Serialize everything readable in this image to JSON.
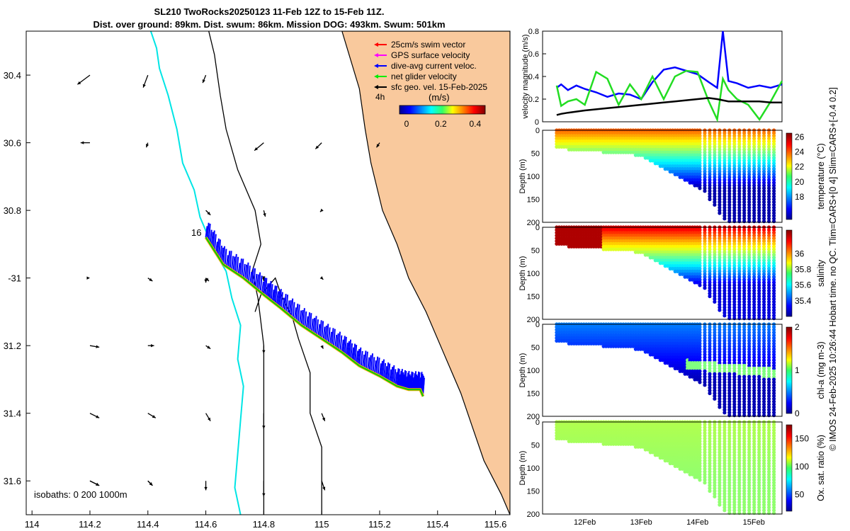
{
  "title": {
    "line1": "SL210 TwoRocks20250123 11-Feb 12Z to 15-Feb 11Z.",
    "line2": "Dist. over ground: 89km. Dist. swum: 86km. Mission DOG: 493km. Swum: 501km"
  },
  "credit": "© IMOS 24-Feb-2025 10:26:44 Hobart time. no QC. Tlim=CARS+[0 4] Slim=CARS+[-0.4 0.2]",
  "colors": {
    "land": "#f9c99d",
    "coast_contour": "#00e5e5",
    "glider_track": "#00cc00",
    "dive_avg": "#0000ff",
    "net_velocity": "#22dd22",
    "sfc_geo": "#000000"
  },
  "chart_data": [
    {
      "type": "map",
      "name": "glider track map",
      "xlabel": "",
      "ylabel": "",
      "xlim": [
        113.98,
        115.65
      ],
      "ylim": [
        -31.7,
        -30.27
      ],
      "x_ticks": [
        114,
        114.2,
        114.4,
        114.6,
        114.8,
        115,
        115.2,
        115.4,
        115.6
      ],
      "y_ticks": [
        -30.4,
        -30.6,
        -30.8,
        -31,
        -31.2,
        -31.4,
        -31.6
      ],
      "x_tick_labels": [
        "114",
        "114.2",
        "114.4",
        "114.6",
        "114.8",
        "115",
        "115.2",
        "115.4",
        "115.6"
      ],
      "y_tick_labels": [
        "30.4",
        "30.6",
        "30.8",
        "-31",
        "31.2",
        "31.4",
        "31.6"
      ],
      "legend": {
        "position": "top-right",
        "entries": [
          {
            "label": "25cm/s swim vector",
            "color": "#ff0000"
          },
          {
            "label": "GPS surface velocity",
            "color": "#ff00ff"
          },
          {
            "label": "dive-avg current veloc.",
            "color": "#0000ff"
          },
          {
            "label": "net glider velocity",
            "color": "#00ee00"
          },
          {
            "label": "sfc geo. vel. 15-Feb-2025",
            "color": "#000000"
          }
        ],
        "time_label": "4h"
      },
      "colorbar": {
        "label": "(m/s)",
        "range": [
          0,
          0.5
        ],
        "ticks": [
          "0",
          "0.2",
          "0.4"
        ]
      },
      "isobath_label": "isobaths: 0   200  1000m",
      "day_label": "16",
      "track": {
        "lon": [
          114.6,
          114.66,
          114.73,
          114.8,
          114.86,
          114.93,
          115.0,
          115.07,
          115.13,
          115.2,
          115.26,
          115.3,
          115.34,
          115.35
        ],
        "lat": [
          -30.88,
          -30.96,
          -31.0,
          -31.05,
          -31.09,
          -31.14,
          -31.18,
          -31.22,
          -31.26,
          -31.29,
          -31.32,
          -31.33,
          -31.33,
          -31.35
        ]
      },
      "coastline_200m": {
        "lon": [
          114.41,
          114.43,
          114.44,
          114.47,
          114.5,
          114.52,
          114.56,
          114.58,
          114.63,
          114.67,
          114.69,
          114.72,
          114.71,
          114.73,
          114.72,
          114.71,
          114.7,
          114.72
        ],
        "lat": [
          -30.27,
          -30.32,
          -30.38,
          -30.46,
          -30.56,
          -30.66,
          -30.74,
          -30.82,
          -30.92,
          -30.98,
          -31.06,
          -31.14,
          -31.24,
          -31.32,
          -31.42,
          -31.52,
          -31.62,
          -31.7
        ]
      },
      "isobath_1000m": {
        "lon": [
          114.61,
          114.63,
          114.64,
          114.65,
          114.67,
          114.71,
          114.77,
          114.79,
          114.76,
          114.78,
          114.8,
          114.8,
          114.8,
          114.8
        ],
        "lat": [
          -30.27,
          -30.34,
          -30.4,
          -30.46,
          -30.56,
          -30.68,
          -30.8,
          -30.9,
          -30.98,
          -31.06,
          -31.2,
          -31.35,
          -31.5,
          -31.7
        ]
      },
      "isobath_0m": {
        "lon": [
          114.77,
          114.79,
          114.84,
          114.86,
          114.9,
          114.92,
          114.96,
          114.96,
          115.0,
          115.0
        ],
        "lat": [
          -31.1,
          -31.05,
          -31.0,
          -31.05,
          -31.12,
          -31.18,
          -31.28,
          -31.4,
          -31.5,
          -31.7
        ]
      },
      "land": {
        "lon": [
          115.07,
          115.13,
          115.15,
          115.17,
          115.21,
          115.26,
          115.3,
          115.36,
          115.42,
          115.48,
          115.52,
          115.56,
          115.62,
          115.65,
          115.65
        ],
        "lat": [
          -30.27,
          -30.44,
          -30.56,
          -30.66,
          -30.8,
          -30.9,
          -31.0,
          -31.1,
          -31.22,
          -31.34,
          -31.44,
          -31.54,
          -31.64,
          -31.7,
          -30.27
        ]
      },
      "geo_vectors": {
        "lon": [
          114.2,
          114.4,
          114.6,
          114.8,
          115.0,
          115.2,
          114.2,
          114.4,
          114.6,
          114.8,
          115.0,
          114.2,
          114.4,
          114.6,
          114.8,
          114.2,
          114.4,
          114.6,
          114.8,
          115.0,
          114.2,
          114.4,
          114.6,
          114.8,
          115.0,
          114.2,
          114.4,
          114.6,
          114.8,
          115.0,
          114.2,
          114.4,
          114.6,
          114.8,
          115.0
        ],
        "lat": [
          -30.4,
          -30.4,
          -30.4,
          -30.6,
          -30.6,
          -30.6,
          -30.6,
          -30.6,
          -30.8,
          -30.8,
          -30.8,
          -31.0,
          -31.0,
          -31.0,
          -31.0,
          -31.2,
          -31.2,
          -31.2,
          -31.2,
          -31.2,
          -31.4,
          -31.4,
          -31.4,
          -31.4,
          -31.4,
          -31.6,
          -31.6,
          -31.6,
          -31.6,
          -31.6,
          -31.6,
          -31.6,
          -31.0,
          -31.0,
          -31.0
        ],
        "u": [
          -0.08,
          -0.03,
          -0.02,
          -0.06,
          -0.04,
          -0.02,
          -0.06,
          -0.01,
          0.03,
          0.01,
          -0.01,
          0.0,
          0.03,
          0.0,
          0.0,
          0.06,
          0.04,
          0.03,
          0.0,
          0.01,
          0.06,
          0.05,
          0.03,
          0.0,
          0.02,
          0.06,
          0.03,
          0.0,
          0.0,
          0.02,
          0.06,
          0.03,
          0.02,
          0.0,
          0.01
        ],
        "v": [
          -0.06,
          -0.08,
          -0.05,
          -0.05,
          -0.04,
          -0.03,
          0.0,
          -0.03,
          -0.03,
          -0.04,
          -0.01,
          0.0,
          -0.02,
          -0.03,
          -0.01,
          -0.01,
          0.0,
          -0.02,
          -0.05,
          -0.02,
          -0.03,
          -0.03,
          -0.05,
          -0.1,
          -0.05,
          -0.03,
          -0.03,
          -0.06,
          -0.1,
          -0.06,
          -0.03,
          -0.03,
          -0.02,
          -0.02,
          -0.01
        ]
      }
    },
    {
      "type": "line",
      "name": "velocity magnitude",
      "ylabel": "velocity magnitude (m/s)",
      "ylim": [
        0,
        0.8
      ],
      "y_ticks": [
        "0",
        "0.2",
        "0.4",
        "0.6",
        "0.8"
      ],
      "x": [
        0,
        0.08,
        0.2,
        0.35,
        0.5,
        0.7,
        0.9,
        1.1,
        1.3,
        1.5,
        1.7,
        1.9,
        2.1,
        2.3,
        2.5,
        2.7,
        2.85,
        2.95,
        3.05,
        3.2,
        3.4,
        3.6,
        3.8,
        4.0
      ],
      "series": [
        {
          "name": "dive-avg current",
          "color": "#0000ff",
          "values": [
            0.3,
            0.33,
            0.28,
            0.32,
            0.29,
            0.26,
            0.22,
            0.25,
            0.24,
            0.2,
            0.35,
            0.46,
            0.48,
            0.45,
            0.42,
            0.35,
            0.3,
            0.8,
            0.36,
            0.34,
            0.3,
            0.32,
            0.3,
            0.33
          ]
        },
        {
          "name": "net glider",
          "color": "#22dd22",
          "values": [
            0.32,
            0.14,
            0.18,
            0.2,
            0.15,
            0.44,
            0.38,
            0.15,
            0.33,
            0.2,
            0.4,
            0.2,
            0.4,
            0.45,
            0.44,
            0.18,
            0.02,
            0.38,
            0.28,
            0.2,
            0.15,
            0.02,
            0.18,
            0.36
          ]
        },
        {
          "name": "sfc geo",
          "color": "#000000",
          "values": [
            0.06,
            0.07,
            0.08,
            0.09,
            0.1,
            0.11,
            0.12,
            0.13,
            0.14,
            0.15,
            0.16,
            0.17,
            0.18,
            0.19,
            0.2,
            0.21,
            0.2,
            0.19,
            0.18,
            0.18,
            0.18,
            0.18,
            0.17,
            0.17
          ]
        }
      ]
    },
    {
      "type": "heatmap",
      "name": "temperature section",
      "ylabel": "Depth (m)",
      "clabel": "temperature (°C)",
      "ylim": [
        0,
        200
      ],
      "y_ticks": [
        "0",
        "50",
        "100",
        "150",
        "200"
      ],
      "clim": [
        15,
        26.5
      ],
      "c_ticks": [
        "18",
        "20",
        "22",
        "24",
        "26"
      ],
      "profile": {
        "days": [
          0,
          1.5,
          2.6,
          3.0,
          3.3,
          4.0
        ],
        "max_depth": [
          40,
          55,
          130,
          200,
          200,
          200
        ]
      },
      "surface_value": 24,
      "deep_value": 15.5
    },
    {
      "type": "heatmap",
      "name": "salinity section",
      "ylabel": "Depth (m)",
      "clabel": "salinity",
      "ylim": [
        0,
        200
      ],
      "y_ticks": [
        "0",
        "50",
        "100",
        "150",
        "200"
      ],
      "clim": [
        35.2,
        36.3
      ],
      "c_ticks": [
        "35.4",
        "35.6",
        "35.8",
        "36"
      ],
      "profile": {
        "days": [
          0,
          1.5,
          2.6,
          3.0,
          3.3,
          4.0
        ],
        "max_depth": [
          40,
          55,
          130,
          200,
          200,
          200
        ]
      },
      "surface_value": 36.2,
      "deep_value": 35.3
    },
    {
      "type": "heatmap",
      "name": "chlorophyll section",
      "ylabel": "Depth (m)",
      "clabel": "chl-a (mg m-3)",
      "ylim": [
        0,
        200
      ],
      "y_ticks": [
        "0",
        "50",
        "100",
        "150",
        "200"
      ],
      "clim": [
        0,
        2
      ],
      "c_ticks": [
        "0",
        "1",
        "2"
      ],
      "profile": {
        "days": [
          0,
          1.5,
          2.6,
          3.0,
          3.3,
          4.0
        ],
        "max_depth": [
          40,
          55,
          130,
          200,
          200,
          200
        ]
      },
      "surface_value": 0.5,
      "deep_value": 0.1
    },
    {
      "type": "heatmap",
      "name": "oxygen section",
      "ylabel": "Depth (m)",
      "clabel": "Ox. sat. ratio (%)",
      "ylim": [
        0,
        200
      ],
      "y_ticks": [
        "0",
        "50",
        "100",
        "150",
        "200"
      ],
      "clim": [
        20,
        175
      ],
      "c_ticks": [
        "50",
        "100",
        "150"
      ],
      "x_tick_labels": [
        "12Feb",
        "13Feb",
        "14Feb",
        "15Feb"
      ],
      "profile": {
        "days": [
          0,
          1.5,
          2.6,
          3.0,
          3.3,
          4.0
        ],
        "max_depth": [
          40,
          55,
          130,
          200,
          200,
          200
        ]
      },
      "surface_value": 105,
      "deep_value": 100
    }
  ]
}
